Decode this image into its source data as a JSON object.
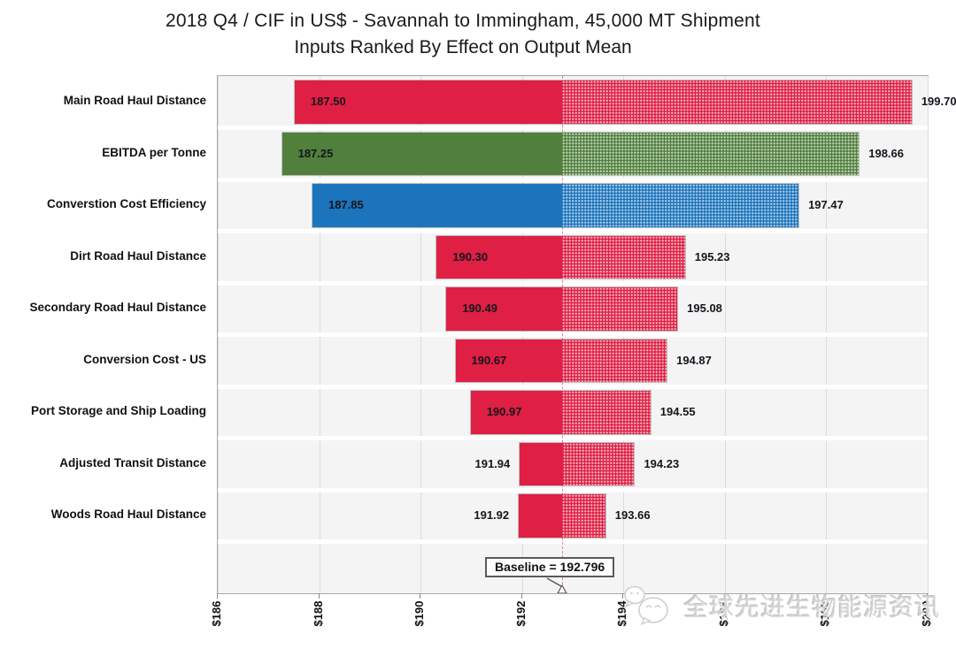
{
  "title": {
    "line1": "2018 Q4 / CIF in US$ - Savannah to Immingham, 45,000 MT Shipment",
    "line2": "Inputs Ranked By Effect on Output Mean"
  },
  "chart_data": {
    "type": "bar",
    "subtype": "tornado",
    "orientation": "horizontal",
    "xlabel": "",
    "ylabel": "",
    "axis": {
      "min": 186,
      "max": 200,
      "tick_step": 2,
      "ticks": [
        186,
        188,
        190,
        192,
        194,
        196,
        198,
        200
      ],
      "tick_labels": [
        "$186",
        "$188",
        "$190",
        "$192",
        "$194",
        "$196",
        "$198",
        "$200"
      ],
      "grid": true
    },
    "baseline": {
      "value": 192.796,
      "label": "Baseline = 192.796"
    },
    "rows": [
      {
        "label": "Main Road Haul Distance",
        "low": 187.5,
        "high": 199.7,
        "low_label": "187.50",
        "high_label": "199.70",
        "color": "#df1f44"
      },
      {
        "label": "EBITDA per Tonne",
        "low": 187.25,
        "high": 198.66,
        "low_label": "187.25",
        "high_label": "198.66",
        "color": "#50803c"
      },
      {
        "label": "Converstion Cost Efficiency",
        "low": 187.85,
        "high": 197.47,
        "low_label": "187.85",
        "high_label": "197.47",
        "color": "#1c74bc"
      },
      {
        "label": "Dirt Road Haul Distance",
        "low": 190.3,
        "high": 195.23,
        "low_label": "190.30",
        "high_label": "195.23",
        "color": "#df1f44"
      },
      {
        "label": "Secondary Road Haul Distance",
        "low": 190.49,
        "high": 195.08,
        "low_label": "190.49",
        "high_label": "195.08",
        "color": "#df1f44"
      },
      {
        "label": "Conversion Cost - US",
        "low": 190.67,
        "high": 194.87,
        "low_label": "190.67",
        "high_label": "194.87",
        "color": "#df1f44"
      },
      {
        "label": "Port Storage and Ship Loading",
        "low": 190.97,
        "high": 194.55,
        "low_label": "190.97",
        "high_label": "194.55",
        "color": "#df1f44"
      },
      {
        "label": "Adjusted Transit Distance",
        "low": 191.94,
        "high": 194.23,
        "low_label": "191.94",
        "high_label": "194.23",
        "color": "#df1f44"
      },
      {
        "label": "Woods Road Haul Distance",
        "low": 191.92,
        "high": 193.66,
        "low_label": "191.92",
        "high_label": "193.66",
        "color": "#df1f44"
      }
    ],
    "colors": {
      "bar_red": "#df1f44",
      "bar_green": "#50803c",
      "bar_blue": "#1c74bc",
      "baseline_line": "#de1c42",
      "plot_background": "#f4f4f4",
      "gridline": "#dbdbdb"
    }
  },
  "watermark": {
    "icon": "wechat-icon",
    "text": "全球先进生物能源资讯"
  }
}
